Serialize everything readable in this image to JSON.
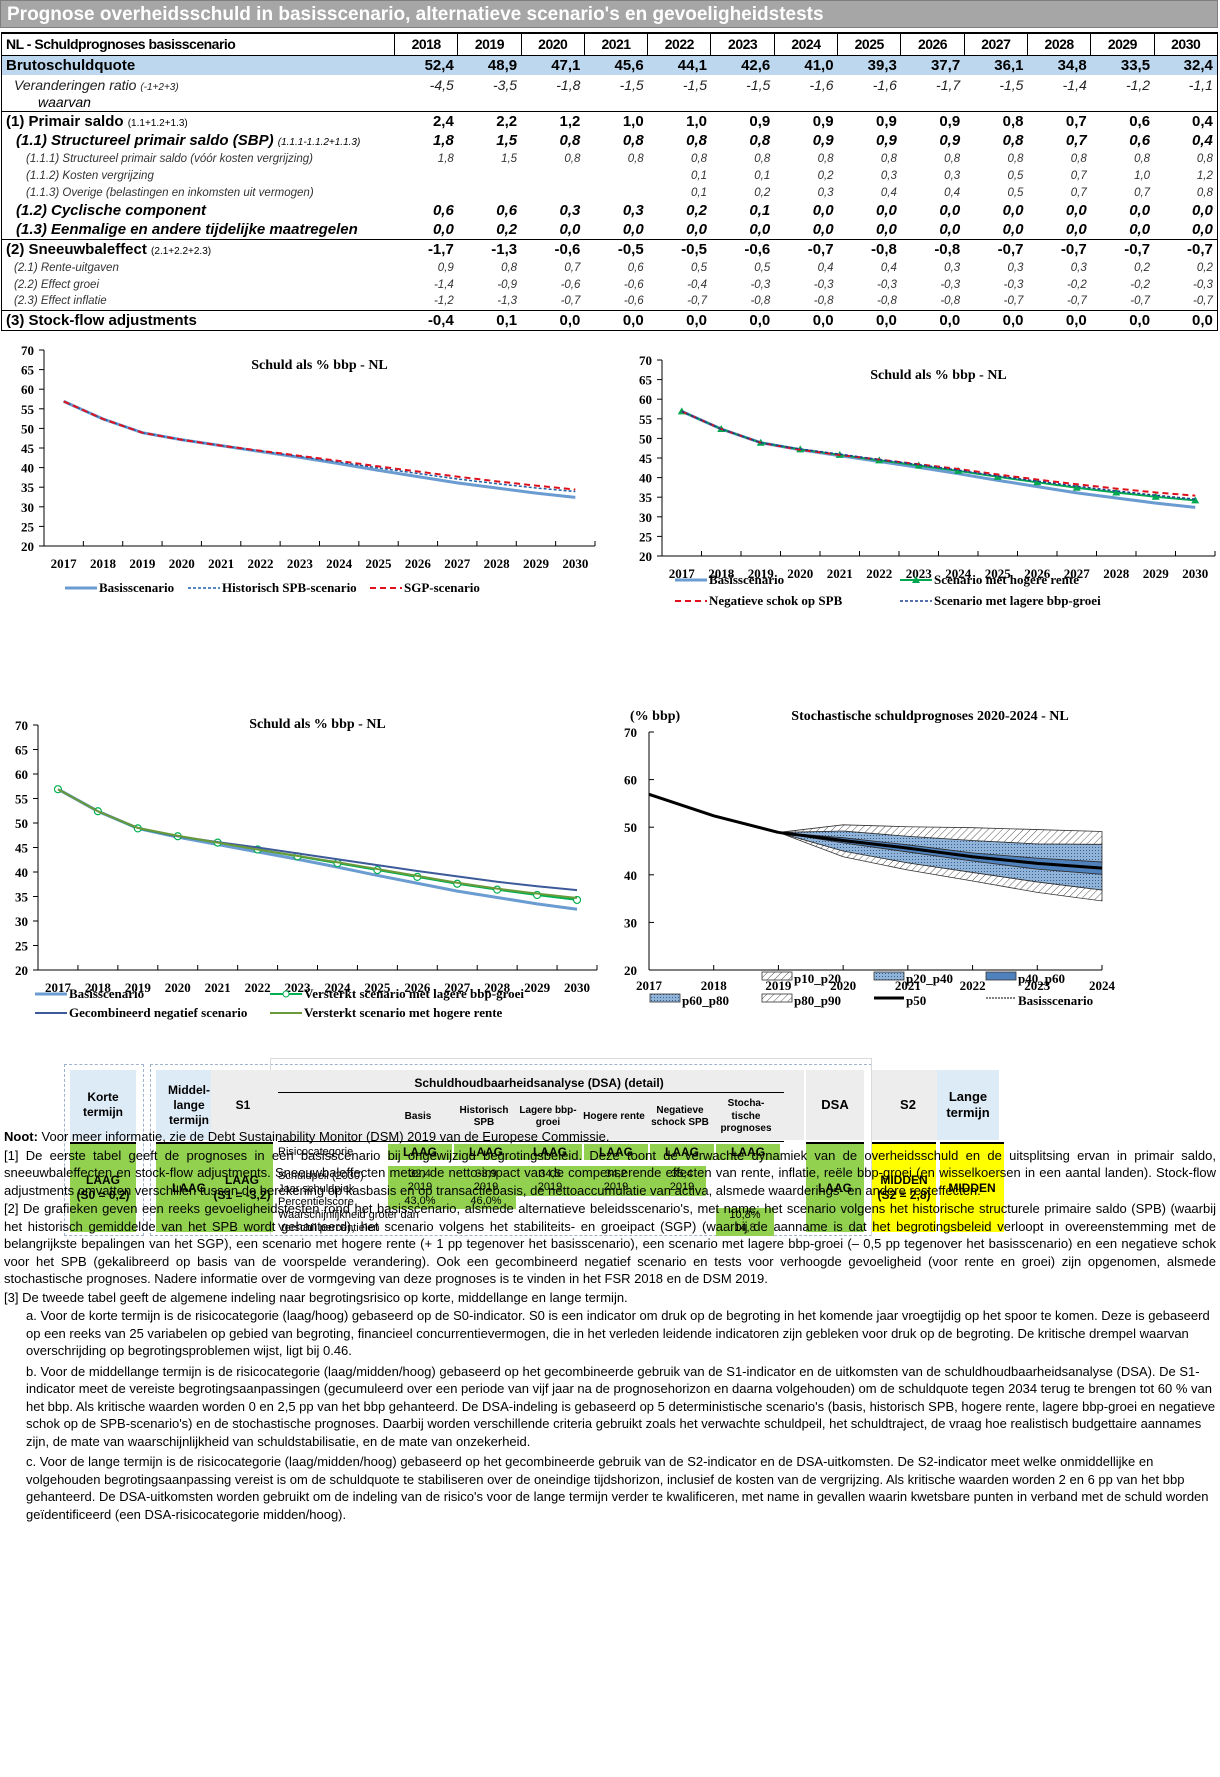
{
  "title": "Prognose overheidsschuld in basisscenario, alternatieve scenario's en gevoeligheidstests",
  "table": {
    "header_label": "NL - Schuldprognoses basisscenario",
    "years": [
      "2018",
      "2019",
      "2020",
      "2021",
      "2022",
      "2023",
      "2024",
      "2025",
      "2026",
      "2027",
      "2028",
      "2029",
      "2030"
    ],
    "rows": [
      {
        "id": "bruto",
        "label": "Brutoschuldquote",
        "note": "",
        "values": [
          "52,4",
          "48,9",
          "47,1",
          "45,6",
          "44,1",
          "42,6",
          "41,0",
          "39,3",
          "37,7",
          "36,1",
          "34,8",
          "33,5",
          "32,4"
        ]
      },
      {
        "id": "ratio",
        "label": "Veranderingen ratio",
        "note": "(-1+2+3)",
        "values": [
          "-4,5",
          "-3,5",
          "-1,8",
          "-1,5",
          "-1,5",
          "-1,5",
          "-1,6",
          "-1,6",
          "-1,7",
          "-1,5",
          "-1,4",
          "-1,2",
          "-1,1"
        ]
      },
      {
        "id": "waarvan",
        "label": "waarvan",
        "note": "",
        "values": [
          "",
          "",
          "",
          "",
          "",
          "",
          "",
          "",
          "",
          "",
          "",
          "",
          ""
        ]
      },
      {
        "id": "primair",
        "label": "(1) Primair saldo",
        "note": "(1.1+1.2+1.3)",
        "values": [
          "2,4",
          "2,2",
          "1,2",
          "1,0",
          "1,0",
          "0,9",
          "0,9",
          "0,9",
          "0,9",
          "0,8",
          "0,7",
          "0,6",
          "0,4"
        ]
      },
      {
        "id": "sbp",
        "label": "(1.1) Structureel primair saldo (SBP)",
        "note": "(1.1.1-1.1.2+1.1.3)",
        "values": [
          "1,8",
          "1,5",
          "0,8",
          "0,8",
          "0,8",
          "0,8",
          "0,9",
          "0,9",
          "0,9",
          "0,8",
          "0,7",
          "0,6",
          "0,4"
        ]
      },
      {
        "id": "sbp111",
        "label": "(1.1.1) Structureel primair saldo (vóór kosten vergrijzing)",
        "note": "",
        "values": [
          "1,8",
          "1,5",
          "0,8",
          "0,8",
          "0,8",
          "0,8",
          "0,8",
          "0,8",
          "0,8",
          "0,8",
          "0,8",
          "0,8",
          "0,8"
        ]
      },
      {
        "id": "sbp112",
        "label": "(1.1.2) Kosten vergrijzing",
        "note": "",
        "values": [
          "",
          "",
          "",
          "",
          "0,1",
          "0,1",
          "0,2",
          "0,3",
          "0,3",
          "0,5",
          "0,7",
          "1,0",
          "1,2"
        ]
      },
      {
        "id": "sbp113",
        "label": "(1.1.3) Overige (belastingen en inkomsten uit vermogen)",
        "note": "",
        "values": [
          "",
          "",
          "",
          "",
          "0,1",
          "0,2",
          "0,3",
          "0,4",
          "0,4",
          "0,5",
          "0,7",
          "0,7",
          "0,8"
        ]
      },
      {
        "id": "cycl",
        "label": "(1.2) Cyclische component",
        "note": "",
        "values": [
          "0,6",
          "0,6",
          "0,3",
          "0,3",
          "0,2",
          "0,1",
          "0,0",
          "0,0",
          "0,0",
          "0,0",
          "0,0",
          "0,0",
          "0,0"
        ]
      },
      {
        "id": "eenm",
        "label": "(1.3) Eenmalige en andere tijdelijke maatregelen",
        "note": "",
        "values": [
          "0,0",
          "0,2",
          "0,0",
          "0,0",
          "0,0",
          "0,0",
          "0,0",
          "0,0",
          "0,0",
          "0,0",
          "0,0",
          "0,0",
          "0,0"
        ]
      },
      {
        "id": "snee",
        "label": "(2) Sneeuwbaleffect",
        "note": "(2.1+2.2+2.3)",
        "values": [
          "-1,7",
          "-1,3",
          "-0,6",
          "-0,5",
          "-0,5",
          "-0,6",
          "-0,7",
          "-0,8",
          "-0,8",
          "-0,7",
          "-0,7",
          "-0,7",
          "-0,7"
        ]
      },
      {
        "id": "rente",
        "label": "(2.1) Rente-uitgaven",
        "note": "",
        "values": [
          "0,9",
          "0,8",
          "0,7",
          "0,6",
          "0,5",
          "0,5",
          "0,4",
          "0,4",
          "0,3",
          "0,3",
          "0,3",
          "0,2",
          "0,2"
        ]
      },
      {
        "id": "groei",
        "label": "(2.2) Effect groei",
        "note": "",
        "values": [
          "-1,4",
          "-0,9",
          "-0,6",
          "-0,6",
          "-0,4",
          "-0,3",
          "-0,3",
          "-0,3",
          "-0,3",
          "-0,3",
          "-0,2",
          "-0,2",
          "-0,3"
        ]
      },
      {
        "id": "infl",
        "label": "(2.3) Effect inflatie",
        "note": "",
        "values": [
          "-1,2",
          "-1,3",
          "-0,7",
          "-0,6",
          "-0,7",
          "-0,8",
          "-0,8",
          "-0,8",
          "-0,8",
          "-0,7",
          "-0,7",
          "-0,7",
          "-0,7"
        ]
      },
      {
        "id": "sfa",
        "label": "(3) Stock-flow adjustments",
        "note": "",
        "values": [
          "-0,4",
          "0,1",
          "0,0",
          "0,0",
          "0,0",
          "0,0",
          "0,0",
          "0,0",
          "0,0",
          "0,0",
          "0,0",
          "0,0",
          "0,0"
        ]
      }
    ]
  },
  "chart_data": [
    {
      "id": "chart1",
      "type": "line",
      "title": "Schuld  als % bbp  - NL",
      "x": [
        "2017",
        "2018",
        "2019",
        "2020",
        "2021",
        "2022",
        "2023",
        "2024",
        "2025",
        "2026",
        "2027",
        "2028",
        "2029",
        "2030"
      ],
      "ylim": [
        20,
        70
      ],
      "yticks": [
        20,
        25,
        30,
        35,
        40,
        45,
        50,
        55,
        60,
        65,
        70
      ],
      "legend_position": "bottom",
      "series": [
        {
          "name": "Basisscenario",
          "color": "#6a9bd1",
          "style": "solid-thick",
          "values": [
            56.9,
            52.4,
            48.9,
            47.1,
            45.6,
            44.1,
            42.6,
            41.0,
            39.3,
            37.7,
            36.1,
            34.8,
            33.5,
            32.4
          ]
        },
        {
          "name": "Historisch SPB-scenario",
          "color": "#1f5fa8",
          "style": "dotted",
          "values": [
            56.9,
            52.4,
            48.9,
            47.1,
            45.6,
            44.2,
            42.8,
            41.4,
            39.9,
            38.5,
            37.1,
            35.9,
            34.8,
            33.9
          ]
        },
        {
          "name": "SGP-scenario",
          "color": "#e0101c",
          "style": "dashed",
          "values": [
            56.9,
            52.4,
            48.9,
            47.1,
            45.6,
            44.3,
            43.0,
            41.7,
            40.3,
            39.0,
            37.7,
            36.5,
            35.4,
            34.4
          ]
        }
      ]
    },
    {
      "id": "chart2",
      "type": "line",
      "title": "Schuld  als % bbp  - NL",
      "x": [
        "2017",
        "2018",
        "2019",
        "2020",
        "2021",
        "2022",
        "2023",
        "2024",
        "2025",
        "2026",
        "2027",
        "2028",
        "2029",
        "2030"
      ],
      "ylim": [
        20,
        70
      ],
      "yticks": [
        20,
        25,
        30,
        35,
        40,
        45,
        50,
        55,
        60,
        65,
        70
      ],
      "legend_position": "bottom",
      "series": [
        {
          "name": "Basisscenario",
          "color": "#6a9bd1",
          "style": "solid-thick",
          "values": [
            56.9,
            52.4,
            48.9,
            47.1,
            45.6,
            44.1,
            42.6,
            41.0,
            39.3,
            37.7,
            36.1,
            34.8,
            33.5,
            32.4
          ]
        },
        {
          "name": "Scenario met hogere rente",
          "color": "#00a651",
          "style": "triangle",
          "values": [
            56.9,
            52.4,
            48.9,
            47.2,
            45.8,
            44.4,
            43.1,
            41.7,
            40.2,
            38.8,
            37.4,
            36.2,
            35.1,
            34.2
          ]
        },
        {
          "name": "Negatieve schok op SPB",
          "color": "#e0101c",
          "style": "dashed",
          "values": [
            56.9,
            52.4,
            48.9,
            47.1,
            45.8,
            44.6,
            43.4,
            42.2,
            40.8,
            39.5,
            38.3,
            37.2,
            36.2,
            35.4
          ]
        },
        {
          "name": "Scenario met lagere bbp-groei",
          "color": "#1f3f8f",
          "style": "dotted",
          "values": [
            56.9,
            52.4,
            48.9,
            47.3,
            46.0,
            44.6,
            43.3,
            41.9,
            40.4,
            39.1,
            37.8,
            36.6,
            35.5,
            34.5
          ]
        }
      ]
    },
    {
      "id": "chart3",
      "type": "line",
      "title": "Schuld  als % bbp  - NL",
      "x": [
        "2017",
        "2018",
        "2019",
        "2020",
        "2021",
        "2022",
        "2023",
        "2024",
        "2025",
        "2026",
        "2027",
        "2028",
        "2029",
        "2030"
      ],
      "ylim": [
        20,
        70
      ],
      "yticks": [
        20,
        25,
        30,
        35,
        40,
        45,
        50,
        55,
        60,
        65,
        70
      ],
      "legend_position": "bottom",
      "series": [
        {
          "name": "Basisscenario",
          "color": "#6a9bd1",
          "style": "solid-thick",
          "values": [
            56.9,
            52.4,
            48.9,
            47.1,
            45.6,
            44.1,
            42.6,
            41.0,
            39.3,
            37.7,
            36.1,
            34.8,
            33.5,
            32.4
          ]
        },
        {
          "name": "Versterkt scenario met lagere bbp-groei",
          "color": "#00b050",
          "style": "circle",
          "values": [
            56.9,
            52.4,
            48.9,
            47.3,
            46.0,
            44.6,
            43.2,
            41.8,
            40.4,
            39.0,
            37.6,
            36.4,
            35.3,
            34.3
          ]
        },
        {
          "name": "Gecombineerd negatief scenario",
          "color": "#3c5a99",
          "style": "solid",
          "values": [
            56.9,
            52.4,
            49.0,
            47.3,
            46.1,
            45.0,
            43.8,
            42.6,
            41.4,
            40.2,
            39.1,
            38.0,
            37.1,
            36.3
          ]
        },
        {
          "name": "Versterkt scenario met hogere rente",
          "color": "#6a9a3a",
          "style": "solid",
          "values": [
            56.9,
            52.4,
            49.0,
            47.4,
            46.0,
            44.6,
            43.3,
            42.0,
            40.6,
            39.2,
            37.8,
            36.6,
            35.6,
            34.7
          ]
        }
      ]
    },
    {
      "id": "chart4",
      "type": "area",
      "title": "Stochastische  schuldprognoses  2020-2024 - NL",
      "ylabel": "(% bbp)",
      "x": [
        "2017",
        "2018",
        "2019",
        "2020",
        "2021",
        "2022",
        "2023",
        "2024"
      ],
      "ylim": [
        20,
        70
      ],
      "yticks": [
        20,
        30,
        40,
        50,
        60,
        70
      ],
      "legend_position": "bottom",
      "history": [
        56.9,
        52.4,
        48.9
      ],
      "fan_x": [
        "2019",
        "2020",
        "2021",
        "2022",
        "2023",
        "2024"
      ],
      "percentiles": {
        "p10": [
          48.9,
          43.8,
          41.0,
          38.7,
          36.3,
          34.5
        ],
        "p20": [
          48.9,
          45.0,
          42.5,
          40.5,
          38.5,
          36.8
        ],
        "p40": [
          48.9,
          46.7,
          44.8,
          42.9,
          41.2,
          40.1
        ],
        "p50": [
          48.9,
          47.2,
          45.6,
          43.8,
          42.4,
          41.4
        ],
        "p60": [
          48.9,
          47.8,
          46.3,
          44.6,
          43.5,
          42.7
        ],
        "p80": [
          48.9,
          49.2,
          48.1,
          47.2,
          46.5,
          46.4
        ],
        "p90": [
          48.9,
          50.5,
          50.1,
          49.9,
          49.5,
          49.1
        ]
      },
      "legend": [
        "p10_p20",
        "p20_p40",
        "p40_p60",
        "p60_p80",
        "p80_p90",
        "p50",
        "Basisscenario"
      ]
    }
  ],
  "dsa": {
    "korte_termijn": {
      "header": "Korte\ntermijn",
      "value": "LAAG\n(S0 = 0,2)"
    },
    "middellange": {
      "header": "Middel-\nlange\ntermijn",
      "value": "LAAG"
    },
    "s1": {
      "header": "S1",
      "value": "LAAG\n(S1 = -3,2)"
    },
    "detail_title": "Schuldhoudbaarheidsanalyse (DSA) (detail)",
    "columns": [
      "Basis",
      "Historisch\nSPB",
      "Lagere bbp-\ngroei",
      "Hogere rente",
      "Negatieve\nschock SPB",
      "Stocha-\ntische\nprognoses"
    ],
    "row_labels": [
      "Risicocategorie",
      "Schuldpeil (2030)",
      "Jaar schuldpiek",
      "Percentielscore",
      "Waarschijnlijkheid groter dan",
      "Verschil percentielen"
    ],
    "risico": [
      "LAAG",
      "LAAG",
      "LAAG",
      "LAAG",
      "LAAG",
      "LAAG"
    ],
    "schuldpeil": [
      "32,4",
      "33,9",
      "34,5",
      "34,2",
      "35,4"
    ],
    "jaar_piek": [
      "2019",
      "2019",
      "2019",
      "2019",
      "2019"
    ],
    "percentielscore": [
      "43,0%",
      "46,0%"
    ],
    "waarschijnlijkheid": "10,8%",
    "verschil": "14,8",
    "dsa": {
      "header": "DSA",
      "value": "LAAG"
    },
    "s2": {
      "header": "S2",
      "value": "MIDDEN\n(S2 = 2,8)"
    },
    "lange_termijn": {
      "header": "Lange\ntermijn",
      "value": "MIDDEN"
    },
    "colors": {
      "laag": "#92d050",
      "midden": "#ffff00"
    }
  },
  "notes": {
    "noot_label": "Noot:",
    "noot_text": " Voor meer informatie, zie de Debt Sustainability Monitor (DSM) 2019 van de Europese Commissie.",
    "n1": "[1] De eerste tabel geeft de prognoses in een basisscenario bij ongewijzigd begrotingsbeleid. Deze toont de verwachte dynamiek van de overheidsschuld en de uitsplitsing ervan in primair saldo, sneeuwbaleffecten en stock-flow adjustments. Sneeuwbaleffecten meten de netto-impact van de compenserende effecten van rente, inflatie, reële bbp-groei (en wisselkoersen in een aantal landen). Stock-flow adjustments omvatten verschillen tussen de berekening op kasbasis en op transactiebasis, de nettoaccumulatie van activa, alsmede waarderings- en andere resteffecten.",
    "n2": "[2] De grafieken geven een reeks gevoeligheidstesten rond het basisscenario, alsmede alternatieve beleidsscenario's, met name: het scenario volgens het historische structurele primaire saldo (SPB) (waarbij het historisch gemiddelde van het SPB wordt gehanteerd), het scenario volgens het stabiliteits- en groeipact (SGP) (waarbij de aanname is dat het begrotingsbeleid verloopt in overeenstemming met de belangrijkste bepalingen van het SGP), een scenario met hogere rente (+ 1 pp tegenover het basisscenario), een scenario met lagere bbp-groei (– 0,5 pp tegenover het basisscenario) en een negatieve schok voor het SPB (gekalibreerd op basis van de voorspelde verandering). Ook een gecombineerd negatief scenario en tests voor verhoogde gevoeligheid (voor rente en groei) zijn opgenomen, alsmede stochastische prognoses. Nadere informatie over de vormgeving van deze prognoses is te vinden in het FSR 2018 en de DSM 2019.",
    "n3": "[3]  De tweede tabel geeft de algemene indeling naar begrotingsrisico op korte, middellange en lange termijn.",
    "n3a": "a. Voor de korte termijn is de risicocategorie (laag/hoog) gebaseerd op de S0-indicator. S0 is een indicator om druk op de begroting in het komende jaar vroegtijdig op het spoor te komen. Deze is gebaseerd op een reeks van 25 variabelen op gebied van begroting, financieel concurrentievermogen, die in het verleden leidende indicatoren zijn gebleken voor druk op de begroting. De kritische drempel waarvan overschrijding op begrotingsproblemen wijst, ligt bij 0.46.",
    "n3b": "b. Voor de middellange termijn is de risicocategorie (laag/midden/hoog) gebaseerd op het gecombineerde gebruik van de S1-indicator en de uitkomsten van de schuldhoudbaarheidsanalyse (DSA). De S1-indicator meet de vereiste begrotingsaanpassingen (gecumuleerd over een periode van vijf jaar na de prognosehorizon en daarna volgehouden) om de schuldquote tegen 2034 terug te brengen tot 60 % van het bbp. Als kritische waarden worden 0 en 2,5 pp van het bbp gehanteerd. De DSA-indeling is gebaseerd op 5 deterministische scenario's (basis, historisch SPB, hogere rente, lagere bbp-groei en negatieve schok op de SPB-scenario's) en de stochastische prognoses. Daarbij worden verschillende criteria gebruikt zoals het verwachte schuldpeil, het schuldtraject, de vraag hoe realistisch budgettaire aannames zijn, de mate van waarschijnlijkheid van schuldstabilisatie, en de mate van onzekerheid.",
    "n3c": "c.  Voor de lange termijn is de risicocategorie (laag/midden/hoog) gebaseerd op het gecombineerde gebruik van de S2-indicator en de DSA-uitkomsten. De S2-indicator meet welke onmiddellijke en volgehouden begrotingsaanpassing vereist is om de schuldquote te stabiliseren over de oneindige tijdshorizon, inclusief de kosten van de vergrijzing. Als kritische waarden worden 2 en 6 pp van het bbp gehanteerd. De DSA-uitkomsten worden gebruikt om de indeling van de risico's voor de lange termijn verder te kwalificeren, met name in gevallen waarin kwetsbare punten in verband met de schuld worden geïdentificeerd (een DSA-risicocategorie midden/hoog)."
  }
}
